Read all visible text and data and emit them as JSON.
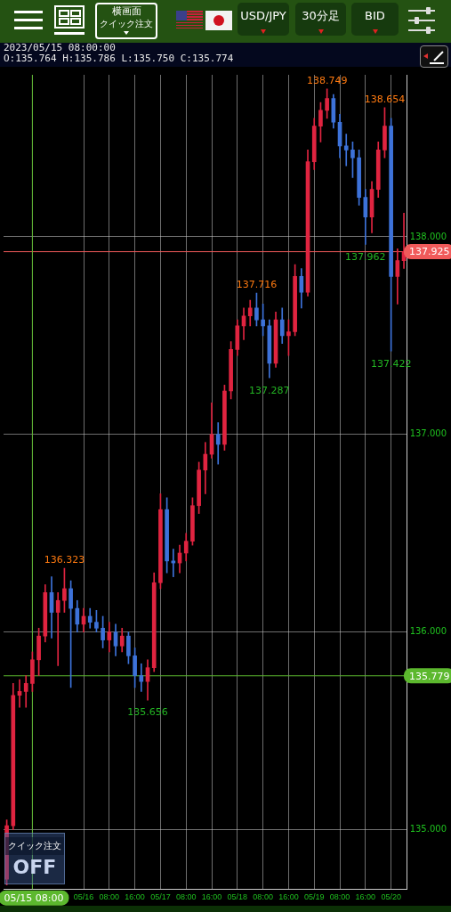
{
  "chart_data": {
    "type": "candlestick",
    "categories": [
      null,
      null,
      null,
      null,
      "05/15 08:00",
      null,
      null,
      null,
      null,
      null,
      null,
      null,
      "05/16",
      null,
      null,
      null,
      "08:00",
      null,
      null,
      null,
      "16:00",
      null,
      null,
      null,
      "05/17",
      null,
      null,
      null,
      "08:00",
      null,
      null,
      null,
      "16:00",
      null,
      null,
      null,
      "05/18",
      null,
      null,
      null,
      "08:00",
      null,
      null,
      null,
      "16:00",
      null,
      null,
      null,
      "05/19",
      null,
      null,
      null,
      "08:00",
      null,
      null,
      null,
      "16:00",
      null,
      null,
      null,
      "05/20",
      null,
      null
    ],
    "ohlc": [
      [
        134.75,
        135.05,
        134.72,
        135.02
      ],
      [
        135.02,
        135.74,
        135.0,
        135.68
      ],
      [
        135.68,
        135.76,
        135.62,
        135.7
      ],
      [
        135.7,
        135.78,
        135.62,
        135.74
      ],
      [
        135.74,
        135.9,
        135.7,
        135.86
      ],
      [
        135.86,
        136.02,
        135.78,
        135.98
      ],
      [
        135.98,
        136.24,
        135.95,
        136.2
      ],
      [
        136.2,
        136.28,
        135.97,
        136.1
      ],
      [
        136.1,
        136.2,
        135.83,
        136.16
      ],
      [
        136.16,
        136.323,
        136.1,
        136.22
      ],
      [
        136.22,
        136.26,
        135.72,
        136.12
      ],
      [
        136.12,
        136.16,
        136.0,
        136.04
      ],
      [
        136.04,
        136.12,
        136.0,
        136.08
      ],
      [
        136.08,
        136.12,
        136.02,
        136.05
      ],
      [
        136.05,
        136.11,
        136.0,
        136.02
      ],
      [
        136.02,
        136.08,
        135.92,
        135.96
      ],
      [
        135.96,
        136.05,
        135.9,
        136.0
      ],
      [
        136.0,
        136.04,
        135.88,
        135.93
      ],
      [
        135.93,
        136.02,
        135.9,
        135.98
      ],
      [
        135.98,
        136.0,
        135.84,
        135.88
      ],
      [
        135.88,
        135.92,
        135.72,
        135.78
      ],
      [
        135.78,
        135.84,
        135.7,
        135.75
      ],
      [
        135.75,
        135.86,
        135.656,
        135.82
      ],
      [
        135.82,
        136.3,
        135.8,
        136.25
      ],
      [
        136.25,
        136.7,
        136.22,
        136.62
      ],
      [
        136.62,
        136.68,
        136.3,
        136.36
      ],
      [
        136.36,
        136.42,
        136.28,
        136.35
      ],
      [
        136.35,
        136.44,
        136.3,
        136.4
      ],
      [
        136.4,
        136.5,
        136.36,
        136.46
      ],
      [
        136.46,
        136.68,
        136.44,
        136.64
      ],
      [
        136.64,
        136.86,
        136.6,
        136.82
      ],
      [
        136.82,
        136.96,
        136.7,
        136.9
      ],
      [
        136.9,
        137.16,
        136.88,
        137.0
      ],
      [
        137.0,
        137.06,
        136.85,
        136.95
      ],
      [
        136.95,
        137.25,
        136.92,
        137.22
      ],
      [
        137.22,
        137.47,
        137.18,
        137.43
      ],
      [
        137.43,
        137.58,
        137.4,
        137.55
      ],
      [
        137.55,
        137.64,
        137.48,
        137.6
      ],
      [
        137.6,
        137.68,
        137.55,
        137.64
      ],
      [
        137.64,
        137.716,
        137.55,
        137.58
      ],
      [
        137.58,
        137.66,
        137.5,
        137.55
      ],
      [
        137.55,
        137.58,
        137.287,
        137.36
      ],
      [
        137.36,
        137.62,
        137.34,
        137.58
      ],
      [
        137.58,
        137.64,
        137.46,
        137.5
      ],
      [
        137.5,
        137.58,
        137.4,
        137.52
      ],
      [
        137.52,
        137.86,
        137.5,
        137.8
      ],
      [
        137.8,
        137.84,
        137.64,
        137.72
      ],
      [
        137.72,
        138.44,
        137.7,
        138.38
      ],
      [
        138.38,
        138.6,
        138.34,
        138.56
      ],
      [
        138.56,
        138.68,
        138.48,
        138.64
      ],
      [
        138.64,
        138.749,
        138.6,
        138.7
      ],
      [
        138.7,
        138.72,
        138.55,
        138.58
      ],
      [
        138.58,
        138.62,
        138.4,
        138.46
      ],
      [
        138.46,
        138.52,
        138.36,
        138.44
      ],
      [
        138.44,
        138.48,
        138.3,
        138.4
      ],
      [
        138.4,
        138.44,
        138.16,
        138.2
      ],
      [
        138.2,
        138.24,
        137.962,
        138.1
      ],
      [
        138.1,
        138.28,
        138.02,
        138.24
      ],
      [
        138.24,
        138.48,
        138.2,
        138.44
      ],
      [
        138.44,
        138.654,
        138.4,
        138.56
      ],
      [
        138.56,
        138.6,
        137.422,
        137.8
      ],
      [
        137.8,
        137.94,
        137.66,
        137.88
      ],
      [
        137.88,
        138.12,
        137.84,
        137.925
      ]
    ],
    "colors": [
      "#e02440",
      "#e02440",
      "#e02440",
      "#e02440",
      "#e02440",
      "#e02440",
      "#e02440",
      "#3d72d9",
      "#e02440",
      "#e02440",
      "#3d72d9",
      "#3d72d9",
      "#e02440",
      "#3d72d9",
      "#3d72d9",
      "#3d72d9",
      "#e02440",
      "#3d72d9",
      "#e02440",
      "#3d72d9",
      "#3d72d9",
      "#3d72d9",
      "#e02440",
      "#e02440",
      "#e02440",
      "#3d72d9",
      "#3d72d9",
      "#e02440",
      "#e02440",
      "#e02440",
      "#e02440",
      "#e02440",
      "#e02440",
      "#3d72d9",
      "#e02440",
      "#e02440",
      "#e02440",
      "#e02440",
      "#e02440",
      "#3d72d9",
      "#3d72d9",
      "#3d72d9",
      "#e02440",
      "#3d72d9",
      "#e02440",
      "#e02440",
      "#3d72d9",
      "#e02440",
      "#e02440",
      "#e02440",
      "#e02440",
      "#3d72d9",
      "#3d72d9",
      "#3d72d9",
      "#3d72d9",
      "#3d72d9",
      "#3d72d9",
      "#e02440",
      "#e02440",
      "#e02440",
      "#3d72d9",
      "#e02440",
      "#e02440"
    ],
    "ylim": [
      134.7,
      138.82
    ],
    "yticks": [
      {
        "value": 135,
        "label": "135.000"
      },
      {
        "value": 136,
        "label": "136.000"
      },
      {
        "value": 137,
        "label": "137.000"
      },
      {
        "value": 138,
        "label": "138.000"
      }
    ],
    "grid": true,
    "ref_lines": [
      {
        "axis": "y",
        "value": 137.925,
        "label": "137.925",
        "color": "#f05a5a"
      },
      {
        "axis": "y",
        "value": 135.779,
        "label": "135.779",
        "color": "#5cb82e"
      },
      {
        "axis": "x",
        "value": "05/15 08:00",
        "color": "#5cb82e"
      }
    ],
    "annotations": [
      {
        "text": "138.749",
        "y": 138.749
      },
      {
        "text": "138.654",
        "y": 138.654
      },
      {
        "text": "137.716",
        "y": 137.716
      },
      {
        "text": "136.323",
        "y": 136.323
      },
      {
        "text": "137.962",
        "y": 137.962
      },
      {
        "text": "137.422",
        "y": 137.422
      },
      {
        "text": "137.287",
        "y": 137.287
      },
      {
        "text": "135.656",
        "y": 135.656
      },
      "2023/05/15 08:00:00",
      "O:135.764 H:135.786 L:135.750 C:135.774",
      "横画面",
      "クイック注文",
      "USD/JPY",
      "30分足",
      "BID",
      "クイック注文",
      "OFF"
    ]
  }
}
